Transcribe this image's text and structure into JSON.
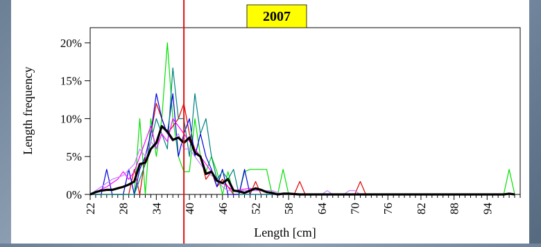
{
  "chart_data": {
    "type": "line",
    "title": "2007",
    "xlabel": "Length [cm]",
    "ylabel": "Length frequency",
    "x_range": [
      22,
      100
    ],
    "ylim": [
      0,
      0.22
    ],
    "y_ticks": [
      {
        "value": 0,
        "label": "0%"
      },
      {
        "value": 0.05,
        "label": "5%"
      },
      {
        "value": 0.1,
        "label": "10%"
      },
      {
        "value": 0.15,
        "label": "15%"
      },
      {
        "value": 0.2,
        "label": "20%"
      }
    ],
    "x_tick_labels": [
      22,
      28,
      34,
      40,
      46,
      52,
      58,
      64,
      70,
      76,
      82,
      88,
      94
    ],
    "reference_line_x": 39,
    "reference_line_color": "#e01010",
    "title_box_color": "#ffff00",
    "series": [
      {
        "color": "#00e000",
        "points": [
          [
            22,
            0
          ],
          [
            30,
            0
          ],
          [
            31,
            0.1
          ],
          [
            32,
            0
          ],
          [
            33,
            0.1
          ],
          [
            34,
            0.05
          ],
          [
            35,
            0.1
          ],
          [
            36,
            0.2
          ],
          [
            37,
            0.1
          ],
          [
            38,
            0.05
          ],
          [
            39,
            0.03
          ],
          [
            40,
            0.03
          ],
          [
            41,
            0.1
          ],
          [
            42,
            0.05
          ],
          [
            43,
            0.03
          ],
          [
            44,
            0.05
          ],
          [
            45,
            0.03
          ],
          [
            46,
            0
          ],
          [
            47,
            0.03
          ],
          [
            48,
            0
          ],
          [
            49,
            0
          ],
          [
            50,
            0.03
          ],
          [
            51,
            0.033
          ],
          [
            52,
            0.033
          ],
          [
            53,
            0.033
          ],
          [
            54,
            0.033
          ],
          [
            55,
            0
          ],
          [
            56,
            0
          ],
          [
            57,
            0.033
          ],
          [
            58,
            0
          ],
          [
            60,
            0
          ],
          [
            97,
            0
          ],
          [
            98,
            0.033
          ],
          [
            99,
            0
          ]
        ]
      },
      {
        "color": "#e00000",
        "points": [
          [
            22,
            0
          ],
          [
            29,
            0
          ],
          [
            30,
            0.033
          ],
          [
            31,
            0
          ],
          [
            32,
            0.05
          ],
          [
            33,
            0.08
          ],
          [
            34,
            0.12
          ],
          [
            35,
            0.1
          ],
          [
            36,
            0.08
          ],
          [
            37,
            0.09
          ],
          [
            38,
            0.1
          ],
          [
            39,
            0.12
          ],
          [
            40,
            0.08
          ],
          [
            41,
            0.06
          ],
          [
            42,
            0.05
          ],
          [
            43,
            0.02
          ],
          [
            44,
            0.03
          ],
          [
            45,
            0.01
          ],
          [
            46,
            0.02
          ],
          [
            47,
            0.01
          ],
          [
            48,
            0
          ],
          [
            51,
            0
          ],
          [
            52,
            0.017
          ],
          [
            53,
            0
          ],
          [
            59,
            0
          ],
          [
            60,
            0.017
          ],
          [
            61,
            0
          ],
          [
            70,
            0
          ],
          [
            71,
            0.017
          ],
          [
            72,
            0
          ],
          [
            99,
            0
          ]
        ]
      },
      {
        "color": "#0000e0",
        "points": [
          [
            22,
            0
          ],
          [
            24,
            0
          ],
          [
            25,
            0.033
          ],
          [
            26,
            0
          ],
          [
            28,
            0
          ],
          [
            29,
            0.033
          ],
          [
            30,
            0
          ],
          [
            31,
            0.033
          ],
          [
            32,
            0.05
          ],
          [
            33,
            0.08
          ],
          [
            34,
            0.133
          ],
          [
            35,
            0.1
          ],
          [
            36,
            0.08
          ],
          [
            37,
            0.133
          ],
          [
            38,
            0.05
          ],
          [
            39,
            0.08
          ],
          [
            40,
            0.1
          ],
          [
            41,
            0.05
          ],
          [
            42,
            0.08
          ],
          [
            43,
            0.05
          ],
          [
            44,
            0.033
          ],
          [
            45,
            0.01
          ],
          [
            46,
            0.033
          ],
          [
            47,
            0
          ],
          [
            49,
            0
          ],
          [
            50,
            0.033
          ],
          [
            51,
            0
          ],
          [
            99,
            0
          ]
        ]
      },
      {
        "color": "#008080",
        "points": [
          [
            22,
            0
          ],
          [
            30,
            0
          ],
          [
            31,
            0.02
          ],
          [
            32,
            0.04
          ],
          [
            33,
            0.07
          ],
          [
            34,
            0.1
          ],
          [
            35,
            0.08
          ],
          [
            36,
            0.06
          ],
          [
            37,
            0.167
          ],
          [
            38,
            0.1
          ],
          [
            39,
            0.1
          ],
          [
            40,
            0.05
          ],
          [
            41,
            0.133
          ],
          [
            42,
            0.08
          ],
          [
            43,
            0.1
          ],
          [
            44,
            0.05
          ],
          [
            45,
            0.02
          ],
          [
            46,
            0.03
          ],
          [
            47,
            0.02
          ],
          [
            48,
            0.033
          ],
          [
            49,
            0
          ],
          [
            99,
            0
          ]
        ]
      },
      {
        "color": "#ff00ff",
        "points": [
          [
            22,
            0
          ],
          [
            25,
            0.01
          ],
          [
            27,
            0.02
          ],
          [
            28,
            0.03
          ],
          [
            29,
            0.02
          ],
          [
            30,
            0.03
          ],
          [
            31,
            0.05
          ],
          [
            32,
            0.07
          ],
          [
            33,
            0.09
          ],
          [
            34,
            0.06
          ],
          [
            35,
            0.08
          ],
          [
            36,
            0.07
          ],
          [
            37,
            0.1
          ],
          [
            38,
            0.09
          ],
          [
            39,
            0.08
          ],
          [
            40,
            0.07
          ],
          [
            41,
            0.06
          ],
          [
            42,
            0.05
          ],
          [
            43,
            0.04
          ],
          [
            44,
            0.03
          ],
          [
            45,
            0.02
          ],
          [
            46,
            0.015
          ],
          [
            47,
            0.01
          ],
          [
            48,
            0.005
          ],
          [
            51,
            0.008
          ],
          [
            53,
            0.005
          ],
          [
            56,
            0
          ],
          [
            99,
            0
          ]
        ]
      },
      {
        "color": "#c080ff",
        "points": [
          [
            22,
            0
          ],
          [
            24,
            0.01
          ],
          [
            26,
            0.02
          ],
          [
            28,
            0.025
          ],
          [
            30,
            0.04
          ],
          [
            31,
            0.06
          ],
          [
            32,
            0.05
          ],
          [
            33,
            0.07
          ],
          [
            34,
            0.06
          ],
          [
            35,
            0.09
          ],
          [
            36,
            0.08
          ],
          [
            37,
            0.07
          ],
          [
            38,
            0.08
          ],
          [
            39,
            0.06
          ],
          [
            40,
            0.06
          ],
          [
            41,
            0.05
          ],
          [
            42,
            0.04
          ],
          [
            43,
            0.03
          ],
          [
            44,
            0.025
          ],
          [
            45,
            0.02
          ],
          [
            46,
            0.01
          ],
          [
            47,
            0.005
          ],
          [
            52,
            0.005
          ],
          [
            55,
            0.005
          ],
          [
            57,
            0
          ],
          [
            64,
            0
          ],
          [
            65,
            0.005
          ],
          [
            66,
            0
          ],
          [
            68,
            0
          ],
          [
            69,
            0.005
          ],
          [
            70,
            0.005
          ],
          [
            71,
            0
          ],
          [
            99,
            0
          ]
        ]
      },
      {
        "color": "#000000",
        "width": 3.2,
        "points": [
          [
            22,
            0
          ],
          [
            23,
            0.003
          ],
          [
            24,
            0.005
          ],
          [
            25,
            0.006
          ],
          [
            26,
            0.006
          ],
          [
            27,
            0.008
          ],
          [
            28,
            0.01
          ],
          [
            29,
            0.013
          ],
          [
            30,
            0.017
          ],
          [
            31,
            0.04
          ],
          [
            32,
            0.042
          ],
          [
            33,
            0.06
          ],
          [
            34,
            0.068
          ],
          [
            35,
            0.09
          ],
          [
            36,
            0.083
          ],
          [
            37,
            0.072
          ],
          [
            38,
            0.075
          ],
          [
            39,
            0.068
          ],
          [
            40,
            0.075
          ],
          [
            41,
            0.055
          ],
          [
            42,
            0.05
          ],
          [
            43,
            0.027
          ],
          [
            44,
            0.03
          ],
          [
            45,
            0.018
          ],
          [
            46,
            0.015
          ],
          [
            47,
            0.02
          ],
          [
            48,
            0.005
          ],
          [
            49,
            0.004
          ],
          [
            50,
            0.002
          ],
          [
            51,
            0.005
          ],
          [
            52,
            0.008
          ],
          [
            53,
            0.006
          ],
          [
            54,
            0.003
          ],
          [
            55,
            0.002
          ],
          [
            56,
            0
          ],
          [
            57,
            0.001
          ],
          [
            58,
            0.001
          ],
          [
            60,
            0
          ],
          [
            97,
            0
          ],
          [
            98,
            0.001
          ],
          [
            99,
            0
          ]
        ]
      }
    ]
  }
}
